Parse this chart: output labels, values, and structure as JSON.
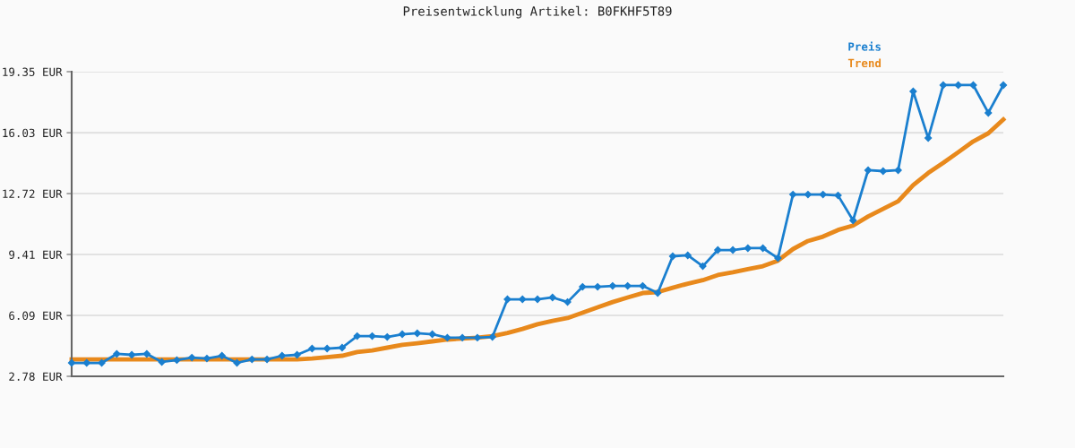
{
  "chart_data": {
    "type": "line",
    "title": "Preisentwicklung Artikel: B0FKHF5T89",
    "categories": [
      null,
      null,
      null,
      null,
      null,
      null,
      null,
      null,
      null,
      null,
      null,
      null,
      null,
      null,
      null,
      null,
      null,
      null,
      null,
      null,
      null,
      null,
      null,
      null,
      null,
      null,
      null,
      null,
      null,
      null,
      null,
      null,
      null,
      null,
      null,
      null,
      null,
      null,
      null,
      null,
      null,
      null,
      null,
      null,
      null,
      null,
      null,
      null,
      null,
      null,
      null,
      null,
      null,
      null,
      null,
      null,
      null,
      null,
      null,
      null,
      null,
      null,
      null
    ],
    "series": [
      {
        "name": "Preis",
        "color": "#1a7fcf",
        "marker": "diamond",
        "values": [
          3.51,
          3.51,
          3.51,
          4.0,
          3.95,
          4.0,
          3.56,
          3.66,
          3.8,
          3.75,
          3.9,
          3.51,
          3.7,
          3.7,
          3.9,
          3.95,
          4.29,
          4.29,
          4.34,
          4.97,
          4.97,
          4.92,
          5.07,
          5.12,
          5.07,
          4.88,
          4.88,
          4.88,
          4.92,
          6.97,
          6.97,
          6.97,
          7.07,
          6.82,
          7.65,
          7.65,
          7.7,
          7.7,
          7.7,
          7.31,
          9.31,
          9.36,
          8.77,
          9.65,
          9.65,
          9.75,
          9.75,
          9.21,
          12.67,
          12.67,
          12.67,
          12.62,
          11.26,
          13.99,
          13.94,
          13.99,
          18.28,
          15.74,
          18.62,
          18.62,
          18.62,
          17.11,
          18.62
        ]
      },
      {
        "name": "Trend",
        "color": "#e8891c",
        "marker": "none",
        "values": [
          3.7,
          3.7,
          3.7,
          3.7,
          3.7,
          3.7,
          3.7,
          3.7,
          3.7,
          3.7,
          3.7,
          3.7,
          3.7,
          3.7,
          3.7,
          3.7,
          3.75,
          3.82,
          3.9,
          4.1,
          4.19,
          4.34,
          4.49,
          4.58,
          4.68,
          4.78,
          4.83,
          4.88,
          4.97,
          5.14,
          5.36,
          5.61,
          5.8,
          5.95,
          6.24,
          6.53,
          6.82,
          7.07,
          7.31,
          7.36,
          7.6,
          7.82,
          8.01,
          8.29,
          8.44,
          8.61,
          8.77,
          9.07,
          9.7,
          10.14,
          10.38,
          10.74,
          10.98,
          11.47,
          11.89,
          12.3,
          13.18,
          13.84,
          14.39,
          14.97,
          15.56,
          16.0,
          16.75
        ]
      }
    ],
    "ylim": [
      2.78,
      19.35
    ],
    "yticks": [
      {
        "value": 2.78,
        "label": "2.78 EUR"
      },
      {
        "value": 6.09,
        "label": "6.09 EUR"
      },
      {
        "value": 9.41,
        "label": "9.41 EUR"
      },
      {
        "value": 12.72,
        "label": "12.72 EUR"
      },
      {
        "value": 16.03,
        "label": "16.03 EUR"
      },
      {
        "value": 19.35,
        "label": "19.35 EUR"
      }
    ],
    "grid": "y",
    "legend": "top right",
    "tick_labels": "y",
    "line_style": "solid"
  }
}
